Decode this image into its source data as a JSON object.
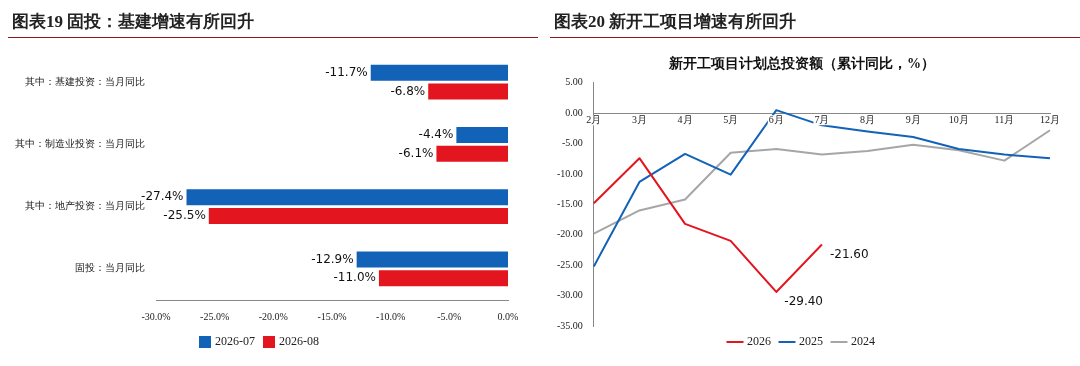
{
  "chart_data": [
    {
      "type": "bar",
      "title": "图表19 固投：基建增速有所回升",
      "orientation": "horizontal",
      "categories": [
        "其中：基建投资：当月同比",
        "其中：制造业投资：当月同比",
        "其中：地产投资：当月同比",
        "固投：当月同比"
      ],
      "series": [
        {
          "name": "2026-07",
          "color": "#1262b8",
          "values": [
            -11.7,
            -4.4,
            -27.4,
            -12.9
          ],
          "value_labels": [
            "-11.7%",
            "-4.4%",
            "-27.4%",
            "-12.9%"
          ]
        },
        {
          "name": "2026-08",
          "color": "#e3151f",
          "values": [
            -6.8,
            -6.1,
            -25.5,
            -11.0
          ],
          "value_labels": [
            "-6.8%",
            "-6.1%",
            "-25.5%",
            "-11.0%"
          ]
        }
      ],
      "xlim": [
        -30,
        0
      ],
      "xticks": [
        {
          "value": -30,
          "label": "-30.0%"
        },
        {
          "value": -25,
          "label": "-25.0%"
        },
        {
          "value": -20,
          "label": "-20.0%"
        },
        {
          "value": -15,
          "label": "-15.0%"
        },
        {
          "value": -10,
          "label": "-10.0%"
        },
        {
          "value": -5,
          "label": "-5.0%"
        },
        {
          "value": 0,
          "label": "0.0%"
        }
      ],
      "legend": "bottom",
      "grid": false
    },
    {
      "type": "line",
      "title": "图表20 新开工项目增速有所回升",
      "subtitle": "新开工项目计划总投资额（累计同比，%）",
      "categories": [
        "2月",
        "3月",
        "4月",
        "5月",
        "6月",
        "7月",
        "8月",
        "9月",
        "10月",
        "11月",
        "12月"
      ],
      "series": [
        {
          "name": "2026",
          "color": "#e3151f",
          "values": [
            -14.8,
            -7.4,
            -18.2,
            -21.0,
            -29.4,
            -21.6,
            null,
            null,
            null,
            null,
            null
          ],
          "value_labels": [
            null,
            null,
            null,
            null,
            "-29.40",
            "-21.60",
            null,
            null,
            null,
            null,
            null
          ]
        },
        {
          "name": "2025",
          "color": "#1262b8",
          "values": [
            -25.2,
            -11.3,
            -6.7,
            -10.1,
            0.5,
            -2.0,
            -3.0,
            -3.9,
            -5.9,
            -6.8,
            -7.4
          ]
        },
        {
          "name": "2024",
          "color": "#a6a6a6",
          "values": [
            -19.8,
            -16.0,
            -14.2,
            -6.5,
            -5.9,
            -6.8,
            -6.2,
            -5.2,
            -6.1,
            -7.8,
            -2.8
          ]
        }
      ],
      "ylim": [
        -35,
        5
      ],
      "yticks": [
        {
          "value": 5,
          "label": "5.00"
        },
        {
          "value": 0,
          "label": "0.00"
        },
        {
          "value": -5,
          "label": "-5.00"
        },
        {
          "value": -10,
          "label": "-10.00"
        },
        {
          "value": -15,
          "label": "-15.00"
        },
        {
          "value": -20,
          "label": "-20.00"
        },
        {
          "value": -25,
          "label": "-25.00"
        },
        {
          "value": -30,
          "label": "-30.00"
        },
        {
          "value": -35,
          "label": "-35.00"
        }
      ],
      "legend": "bottom",
      "grid": false,
      "marker": "none"
    }
  ]
}
